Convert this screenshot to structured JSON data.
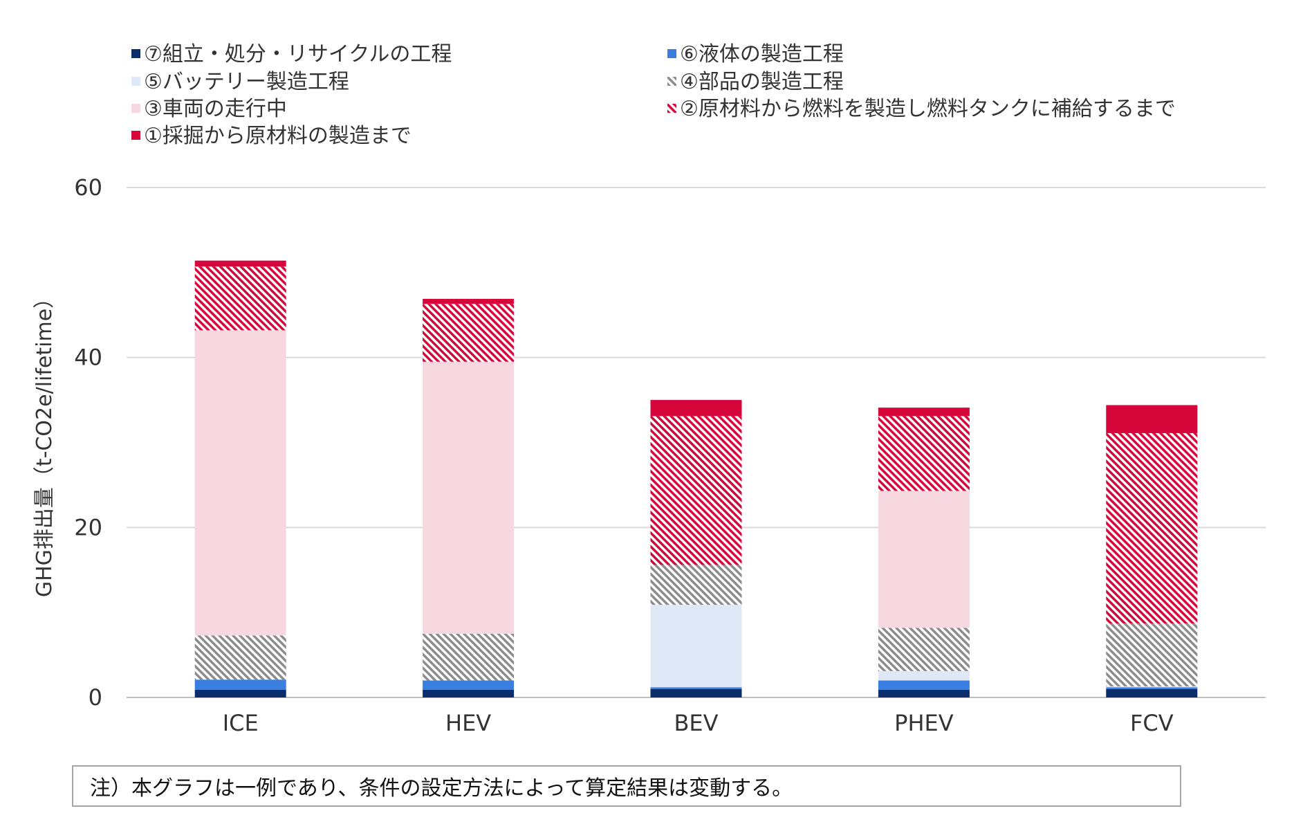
{
  "chart_data": {
    "type": "bar",
    "stacked": true,
    "categories": [
      "ICE",
      "HEV",
      "BEV",
      "PHEV",
      "FCV"
    ],
    "ylabel": "GHG排出量（t-CO2e/lifetime）",
    "ylim": [
      0,
      60
    ],
    "yticks": [
      0,
      20,
      40,
      60
    ],
    "grid": true,
    "legend_position": "top",
    "series": [
      {
        "name": "⑦組立・処分・リサイクルの工程",
        "color": "#0b2d6b",
        "pattern": "solid",
        "values": [
          0.9,
          0.9,
          1.0,
          0.9,
          1.0
        ]
      },
      {
        "name": "⑥液体の製造工程",
        "color": "#3a7ee0",
        "pattern": "solid",
        "values": [
          1.2,
          1.1,
          0.2,
          1.1,
          0.2
        ]
      },
      {
        "name": "⑤バッテリー製造工程",
        "color": "#dfe8f7",
        "pattern": "solid",
        "values": [
          0.0,
          0.0,
          9.7,
          1.1,
          0.1
        ]
      },
      {
        "name": "④部品の製造工程",
        "color": "#8c8c8c",
        "pattern": "hatch",
        "values": [
          5.2,
          5.5,
          4.7,
          5.1,
          7.4
        ]
      },
      {
        "name": "③車両の走行中",
        "color": "#f8d8e0",
        "pattern": "solid",
        "values": [
          35.9,
          32.0,
          0.0,
          16.1,
          0.0
        ]
      },
      {
        "name": "②原材料から燃料を製造し燃料タンクに補給するまで",
        "color": "#d6063a",
        "pattern": "hatch",
        "values": [
          7.5,
          6.8,
          17.5,
          8.8,
          22.4
        ]
      },
      {
        "name": "①採掘から原材料の製造まで",
        "color": "#d6063a",
        "pattern": "solid",
        "values": [
          0.7,
          0.6,
          1.9,
          1.0,
          3.3
        ]
      }
    ]
  },
  "note": "注）本グラフは一例であり、条件の設定方法によって算定結果は変動する。"
}
